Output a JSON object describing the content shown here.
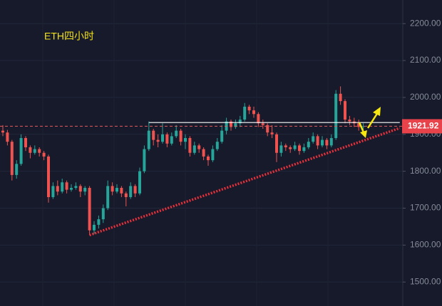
{
  "chart_data": {
    "type": "candlestick",
    "title": "ETH四小时",
    "ylim": [
      1435,
      2264
    ],
    "yticks": [
      {
        "value": 2200,
        "label": "2200.00"
      },
      {
        "value": 2100,
        "label": "2100.00"
      },
      {
        "value": 2000,
        "label": "2000.00"
      },
      {
        "value": 1900,
        "label": "1900.00"
      },
      {
        "value": 1800,
        "label": "1800.00"
      },
      {
        "value": 1700,
        "label": "1700.00"
      },
      {
        "value": 1600,
        "label": "1600.00"
      },
      {
        "value": 1500,
        "label": "1500.00"
      }
    ],
    "grid": true,
    "up_color": "#26a69a",
    "down_color": "#ef5350",
    "last_price": 1921.92,
    "resistance": {
      "value": 1932,
      "x": [
        32,
        87
      ]
    },
    "trendline": {
      "x": [
        19,
        87
      ],
      "y": [
        1627,
        1917
      ]
    },
    "candles": [
      [
        1910,
        1925,
        1895,
        1905
      ],
      [
        1905,
        1912,
        1870,
        1880
      ],
      [
        1880,
        1885,
        1775,
        1790
      ],
      [
        1790,
        1830,
        1780,
        1820
      ],
      [
        1820,
        1900,
        1815,
        1890
      ],
      [
        1890,
        1895,
        1855,
        1865
      ],
      [
        1865,
        1870,
        1835,
        1850
      ],
      [
        1850,
        1870,
        1845,
        1860
      ],
      [
        1860,
        1865,
        1840,
        1850
      ],
      [
        1850,
        1855,
        1830,
        1840
      ],
      [
        1840,
        1845,
        1715,
        1730
      ],
      [
        1730,
        1770,
        1725,
        1760
      ],
      [
        1760,
        1775,
        1735,
        1745
      ],
      [
        1745,
        1780,
        1740,
        1770
      ],
      [
        1770,
        1775,
        1740,
        1750
      ],
      [
        1750,
        1765,
        1745,
        1755
      ],
      [
        1755,
        1770,
        1750,
        1760
      ],
      [
        1760,
        1765,
        1730,
        1745
      ],
      [
        1745,
        1760,
        1735,
        1755
      ],
      [
        1755,
        1760,
        1627,
        1640
      ],
      [
        1640,
        1665,
        1630,
        1655
      ],
      [
        1655,
        1680,
        1645,
        1670
      ],
      [
        1670,
        1710,
        1660,
        1700
      ],
      [
        1700,
        1775,
        1695,
        1760
      ],
      [
        1760,
        1770,
        1735,
        1745
      ],
      [
        1745,
        1765,
        1740,
        1755
      ],
      [
        1755,
        1760,
        1730,
        1740
      ],
      [
        1740,
        1745,
        1705,
        1730
      ],
      [
        1730,
        1770,
        1725,
        1760
      ],
      [
        1760,
        1765,
        1730,
        1740
      ],
      [
        1740,
        1810,
        1735,
        1800
      ],
      [
        1800,
        1870,
        1795,
        1860
      ],
      [
        1860,
        1935,
        1855,
        1910
      ],
      [
        1910,
        1915,
        1870,
        1885
      ],
      [
        1885,
        1900,
        1865,
        1880
      ],
      [
        1880,
        1930,
        1875,
        1900
      ],
      [
        1900,
        1905,
        1865,
        1875
      ],
      [
        1875,
        1905,
        1870,
        1895
      ],
      [
        1895,
        1925,
        1890,
        1910
      ],
      [
        1910,
        1915,
        1870,
        1880
      ],
      [
        1880,
        1900,
        1860,
        1890
      ],
      [
        1890,
        1895,
        1840,
        1850
      ],
      [
        1850,
        1880,
        1845,
        1870
      ],
      [
        1870,
        1875,
        1850,
        1860
      ],
      [
        1860,
        1865,
        1830,
        1840
      ],
      [
        1840,
        1845,
        1815,
        1830
      ],
      [
        1830,
        1870,
        1825,
        1860
      ],
      [
        1860,
        1890,
        1855,
        1880
      ],
      [
        1880,
        1925,
        1875,
        1910
      ],
      [
        1910,
        1945,
        1900,
        1935
      ],
      [
        1935,
        1940,
        1910,
        1920
      ],
      [
        1920,
        1940,
        1915,
        1930
      ],
      [
        1930,
        1950,
        1920,
        1940
      ],
      [
        1940,
        1985,
        1935,
        1975
      ],
      [
        1975,
        1980,
        1955,
        1965
      ],
      [
        1965,
        1975,
        1945,
        1955
      ],
      [
        1955,
        1960,
        1920,
        1930
      ],
      [
        1930,
        1940,
        1915,
        1925
      ],
      [
        1925,
        1930,
        1895,
        1905
      ],
      [
        1905,
        1925,
        1890,
        1900
      ],
      [
        1900,
        1905,
        1825,
        1850
      ],
      [
        1850,
        1880,
        1840,
        1870
      ],
      [
        1870,
        1875,
        1855,
        1865
      ],
      [
        1865,
        1870,
        1850,
        1860
      ],
      [
        1860,
        1880,
        1855,
        1870
      ],
      [
        1870,
        1875,
        1845,
        1855
      ],
      [
        1855,
        1875,
        1850,
        1865
      ],
      [
        1865,
        1890,
        1860,
        1880
      ],
      [
        1880,
        1905,
        1875,
        1895
      ],
      [
        1895,
        1900,
        1860,
        1870
      ],
      [
        1870,
        1895,
        1865,
        1885
      ],
      [
        1885,
        1890,
        1860,
        1870
      ],
      [
        1870,
        1900,
        1865,
        1890
      ],
      [
        1890,
        2020,
        1885,
        2010
      ],
      [
        2010,
        2030,
        1980,
        1990
      ],
      [
        1990,
        1995,
        1930,
        1940
      ],
      [
        1940,
        1950,
        1925,
        1935
      ],
      [
        1935,
        1945,
        1920,
        1930
      ],
      [
        1930,
        1940,
        1910,
        1920
      ],
      [
        1920,
        1930,
        1900,
        1921.92
      ]
    ]
  }
}
